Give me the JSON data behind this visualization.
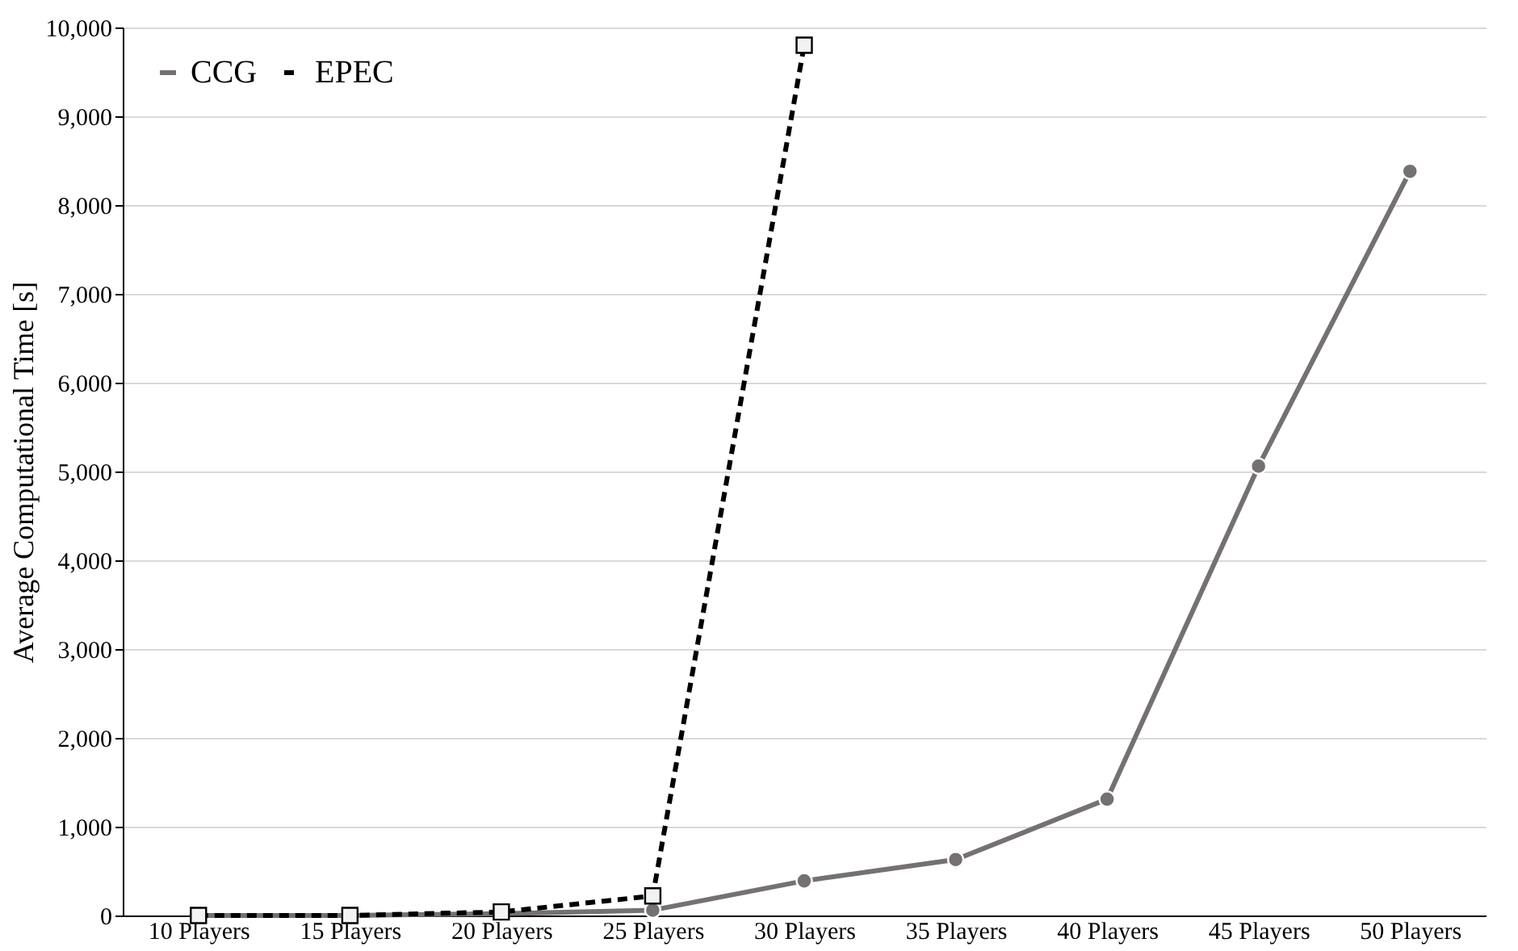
{
  "chart_data": {
    "type": "line",
    "ylabel": "Average Computational Time [s]",
    "categories": [
      "10 Players",
      "15 Players",
      "20 Players",
      "25 Players",
      "30 Players",
      "35 Players",
      "40 Players",
      "45 Players",
      "50 Players"
    ],
    "series": [
      {
        "name": "CCG",
        "color": "#767171",
        "marker": "circle",
        "line_style": "solid",
        "values": [
          0,
          0,
          20,
          60,
          390,
          630,
          1310,
          5060,
          8380
        ]
      },
      {
        "name": "EPEC",
        "color": "#000000",
        "marker": "square",
        "line_style": "dashed",
        "values": [
          0,
          0,
          40,
          220,
          9800,
          null,
          null,
          null,
          null
        ]
      }
    ],
    "ylim": [
      0,
      10000
    ],
    "yticks": [
      {
        "value": 0,
        "label": "0"
      },
      {
        "value": 1000,
        "label": "1,000"
      },
      {
        "value": 2000,
        "label": "2,000"
      },
      {
        "value": 3000,
        "label": "3,000"
      },
      {
        "value": 4000,
        "label": "4,000"
      },
      {
        "value": 5000,
        "label": "5,000"
      },
      {
        "value": 6000,
        "label": "6,000"
      },
      {
        "value": 7000,
        "label": "7,000"
      },
      {
        "value": 8000,
        "label": "8,000"
      },
      {
        "value": 9000,
        "label": "9,000"
      },
      {
        "value": 10000,
        "label": "10,000"
      }
    ],
    "grid": "y",
    "legend": "top left"
  }
}
